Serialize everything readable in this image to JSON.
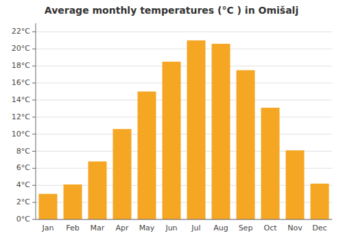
{
  "chart_data": {
    "type": "bar",
    "title": "Average monthly temperatures (°C ) in Omišalj",
    "categories": [
      "Jan",
      "Feb",
      "Mar",
      "Apr",
      "May",
      "Jun",
      "Jul",
      "Aug",
      "Sep",
      "Oct",
      "Nov",
      "Dec"
    ],
    "values": [
      3.0,
      4.1,
      6.8,
      10.6,
      15.0,
      18.5,
      21.0,
      20.6,
      17.5,
      13.1,
      8.1,
      4.2
    ],
    "color": "#f5a623",
    "ylim": [
      0,
      23
    ],
    "yticks": [
      {
        "value": 0,
        "label": "0°C"
      },
      {
        "value": 2,
        "label": "2°C"
      },
      {
        "value": 4,
        "label": "4°C"
      },
      {
        "value": 6,
        "label": "6°C"
      },
      {
        "value": 8,
        "label": "8°C"
      },
      {
        "value": 10,
        "label": "10°C"
      },
      {
        "value": 12,
        "label": "12°C"
      },
      {
        "value": 14,
        "label": "14°C"
      },
      {
        "value": 16,
        "label": "16°C"
      },
      {
        "value": 18,
        "label": "18°C"
      },
      {
        "value": 20,
        "label": "20°C"
      },
      {
        "value": 22,
        "label": "22°C"
      }
    ],
    "grid": true
  }
}
